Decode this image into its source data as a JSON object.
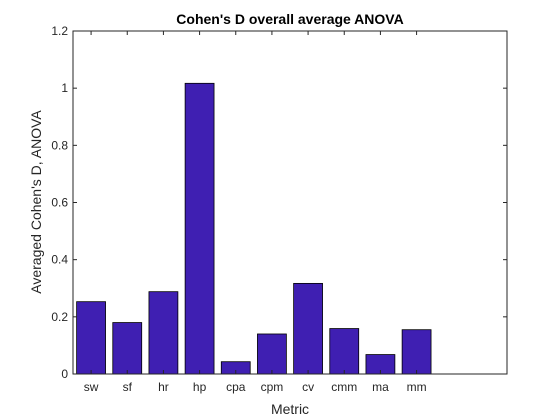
{
  "chart_data": {
    "type": "bar",
    "title": "Cohen's D overall average ANOVA",
    "xlabel": "Metric",
    "ylabel": "Averaged Cohen's D, ANOVA",
    "categories": [
      "sw",
      "sf",
      "hr",
      "hp",
      "cpa",
      "cpm",
      "cv",
      "cmm",
      "ma",
      "mm"
    ],
    "values": [
      0.253,
      0.18,
      0.288,
      1.017,
      0.043,
      0.14,
      0.317,
      0.159,
      0.068,
      0.155
    ],
    "ylim": [
      0,
      1.2
    ],
    "yticks": [
      "0",
      "0.2",
      "0.4",
      "0.6",
      "0.8",
      "1",
      "1.2"
    ],
    "grid": false,
    "legend": "none",
    "bar_color": "#3f1fb2",
    "bar_edge_color": "#000000"
  }
}
